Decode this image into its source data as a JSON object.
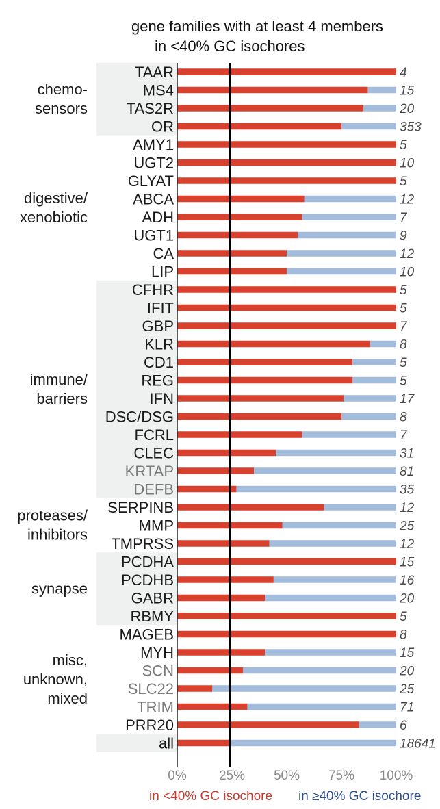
{
  "chart_data": {
    "type": "bar",
    "orientation": "horizontal",
    "stacked": true,
    "title": "gene families with at least 4 members",
    "subtitle": "in <40% GC isochores",
    "xlabel": "",
    "ylabel": "",
    "xlim": [
      0,
      100
    ],
    "x_ticks": [
      "0%",
      "25%",
      "50%",
      "75%",
      "100%"
    ],
    "reference_line": 24,
    "colors": {
      "low_gc": "#d9412f",
      "high_gc": "#a3bcdb",
      "band": "#eff1f0",
      "label_dark": "#1a1a1a",
      "label_gray": "#7a7a7a",
      "count": "#4a4a4a"
    },
    "series": [
      {
        "name": "in <40% GC isochore",
        "key": "low"
      },
      {
        "name": "in ≥40% GC isochore",
        "key": "high"
      }
    ],
    "rows": [
      {
        "label": "TAAR",
        "low": 100,
        "count": "4",
        "group": 0,
        "gray": false
      },
      {
        "label": "MS4",
        "low": 87,
        "count": "15",
        "group": 0,
        "gray": false
      },
      {
        "label": "TAS2R",
        "low": 85,
        "count": "20",
        "group": 0,
        "gray": false
      },
      {
        "label": "OR",
        "low": 75,
        "count": "353",
        "group": 0,
        "gray": false
      },
      {
        "label": "AMY1",
        "low": 100,
        "count": "5",
        "group": 1,
        "gray": false
      },
      {
        "label": "UGT2",
        "low": 100,
        "count": "10",
        "group": 1,
        "gray": false
      },
      {
        "label": "GLYAT",
        "low": 100,
        "count": "5",
        "group": 1,
        "gray": false
      },
      {
        "label": "ABCA",
        "low": 58,
        "count": "12",
        "group": 1,
        "gray": false
      },
      {
        "label": "ADH",
        "low": 57,
        "count": "7",
        "group": 1,
        "gray": false
      },
      {
        "label": "UGT1",
        "low": 55,
        "count": "9",
        "group": 1,
        "gray": false
      },
      {
        "label": "CA",
        "low": 50,
        "count": "12",
        "group": 1,
        "gray": false
      },
      {
        "label": "LIP",
        "low": 50,
        "count": "10",
        "group": 1,
        "gray": false
      },
      {
        "label": "CFHR",
        "low": 100,
        "count": "5",
        "group": 2,
        "gray": false
      },
      {
        "label": "IFIT",
        "low": 100,
        "count": "5",
        "group": 2,
        "gray": false
      },
      {
        "label": "GBP",
        "low": 100,
        "count": "7",
        "group": 2,
        "gray": false
      },
      {
        "label": "KLR",
        "low": 88,
        "count": "8",
        "group": 2,
        "gray": false
      },
      {
        "label": "CD1",
        "low": 80,
        "count": "5",
        "group": 2,
        "gray": false
      },
      {
        "label": "REG",
        "low": 80,
        "count": "5",
        "group": 2,
        "gray": false
      },
      {
        "label": "IFN",
        "low": 76,
        "count": "17",
        "group": 2,
        "gray": false
      },
      {
        "label": "DSC/DSG",
        "low": 75,
        "count": "8",
        "group": 2,
        "gray": false
      },
      {
        "label": "FCRL",
        "low": 57,
        "count": "7",
        "group": 2,
        "gray": false
      },
      {
        "label": "CLEC",
        "low": 45,
        "count": "31",
        "group": 2,
        "gray": false
      },
      {
        "label": "KRTAP",
        "low": 35,
        "count": "81",
        "group": 2,
        "gray": true
      },
      {
        "label": "DEFB",
        "low": 27,
        "count": "35",
        "group": 2,
        "gray": true
      },
      {
        "label": "SERPINB",
        "low": 67,
        "count": "12",
        "group": 3,
        "gray": false
      },
      {
        "label": "MMP",
        "low": 48,
        "count": "25",
        "group": 3,
        "gray": false
      },
      {
        "label": "TMPRSS",
        "low": 42,
        "count": "12",
        "group": 3,
        "gray": false
      },
      {
        "label": "PCDHA",
        "low": 100,
        "count": "15",
        "group": 4,
        "gray": false
      },
      {
        "label": "PCDHB",
        "low": 44,
        "count": "16",
        "group": 4,
        "gray": false
      },
      {
        "label": "GABR",
        "low": 40,
        "count": "20",
        "group": 4,
        "gray": false
      },
      {
        "label": "RBMY",
        "low": 100,
        "count": "5",
        "group": 4,
        "gray": false
      },
      {
        "label": "MAGEB",
        "low": 100,
        "count": "8",
        "group": 5,
        "gray": false
      },
      {
        "label": "MYH",
        "low": 40,
        "count": "15",
        "group": 5,
        "gray": false
      },
      {
        "label": "SCN",
        "low": 30,
        "count": "20",
        "group": 5,
        "gray": true
      },
      {
        "label": "SLC22",
        "low": 16,
        "count": "25",
        "group": 5,
        "gray": true
      },
      {
        "label": "TRIM",
        "low": 32,
        "count": "71",
        "group": 5,
        "gray": true
      },
      {
        "label": "PRR20",
        "low": 83,
        "count": "6",
        "group": 5,
        "gray": false
      },
      {
        "label": "all",
        "low": 24,
        "count": "18641",
        "group": 6,
        "gray": false
      }
    ],
    "groups": [
      {
        "lines": [
          "chemo-",
          "sensors"
        ],
        "shaded": true
      },
      {
        "lines": [
          "digestive/",
          "xenobiotic"
        ],
        "shaded": false
      },
      {
        "lines": [
          "immune/",
          "barriers"
        ],
        "shaded": true
      },
      {
        "lines": [
          "proteases/",
          "inhibitors"
        ],
        "shaded": false
      },
      {
        "lines": [
          "synapse"
        ],
        "shaded": true
      },
      {
        "lines": [
          "misc,",
          "unknown,",
          "mixed"
        ],
        "shaded": false
      },
      {
        "lines": [],
        "shaded": true
      }
    ],
    "legend": {
      "placement": "bottom",
      "low": "in <40% GC isochore",
      "high": "in ≥40% GC isochore"
    }
  }
}
